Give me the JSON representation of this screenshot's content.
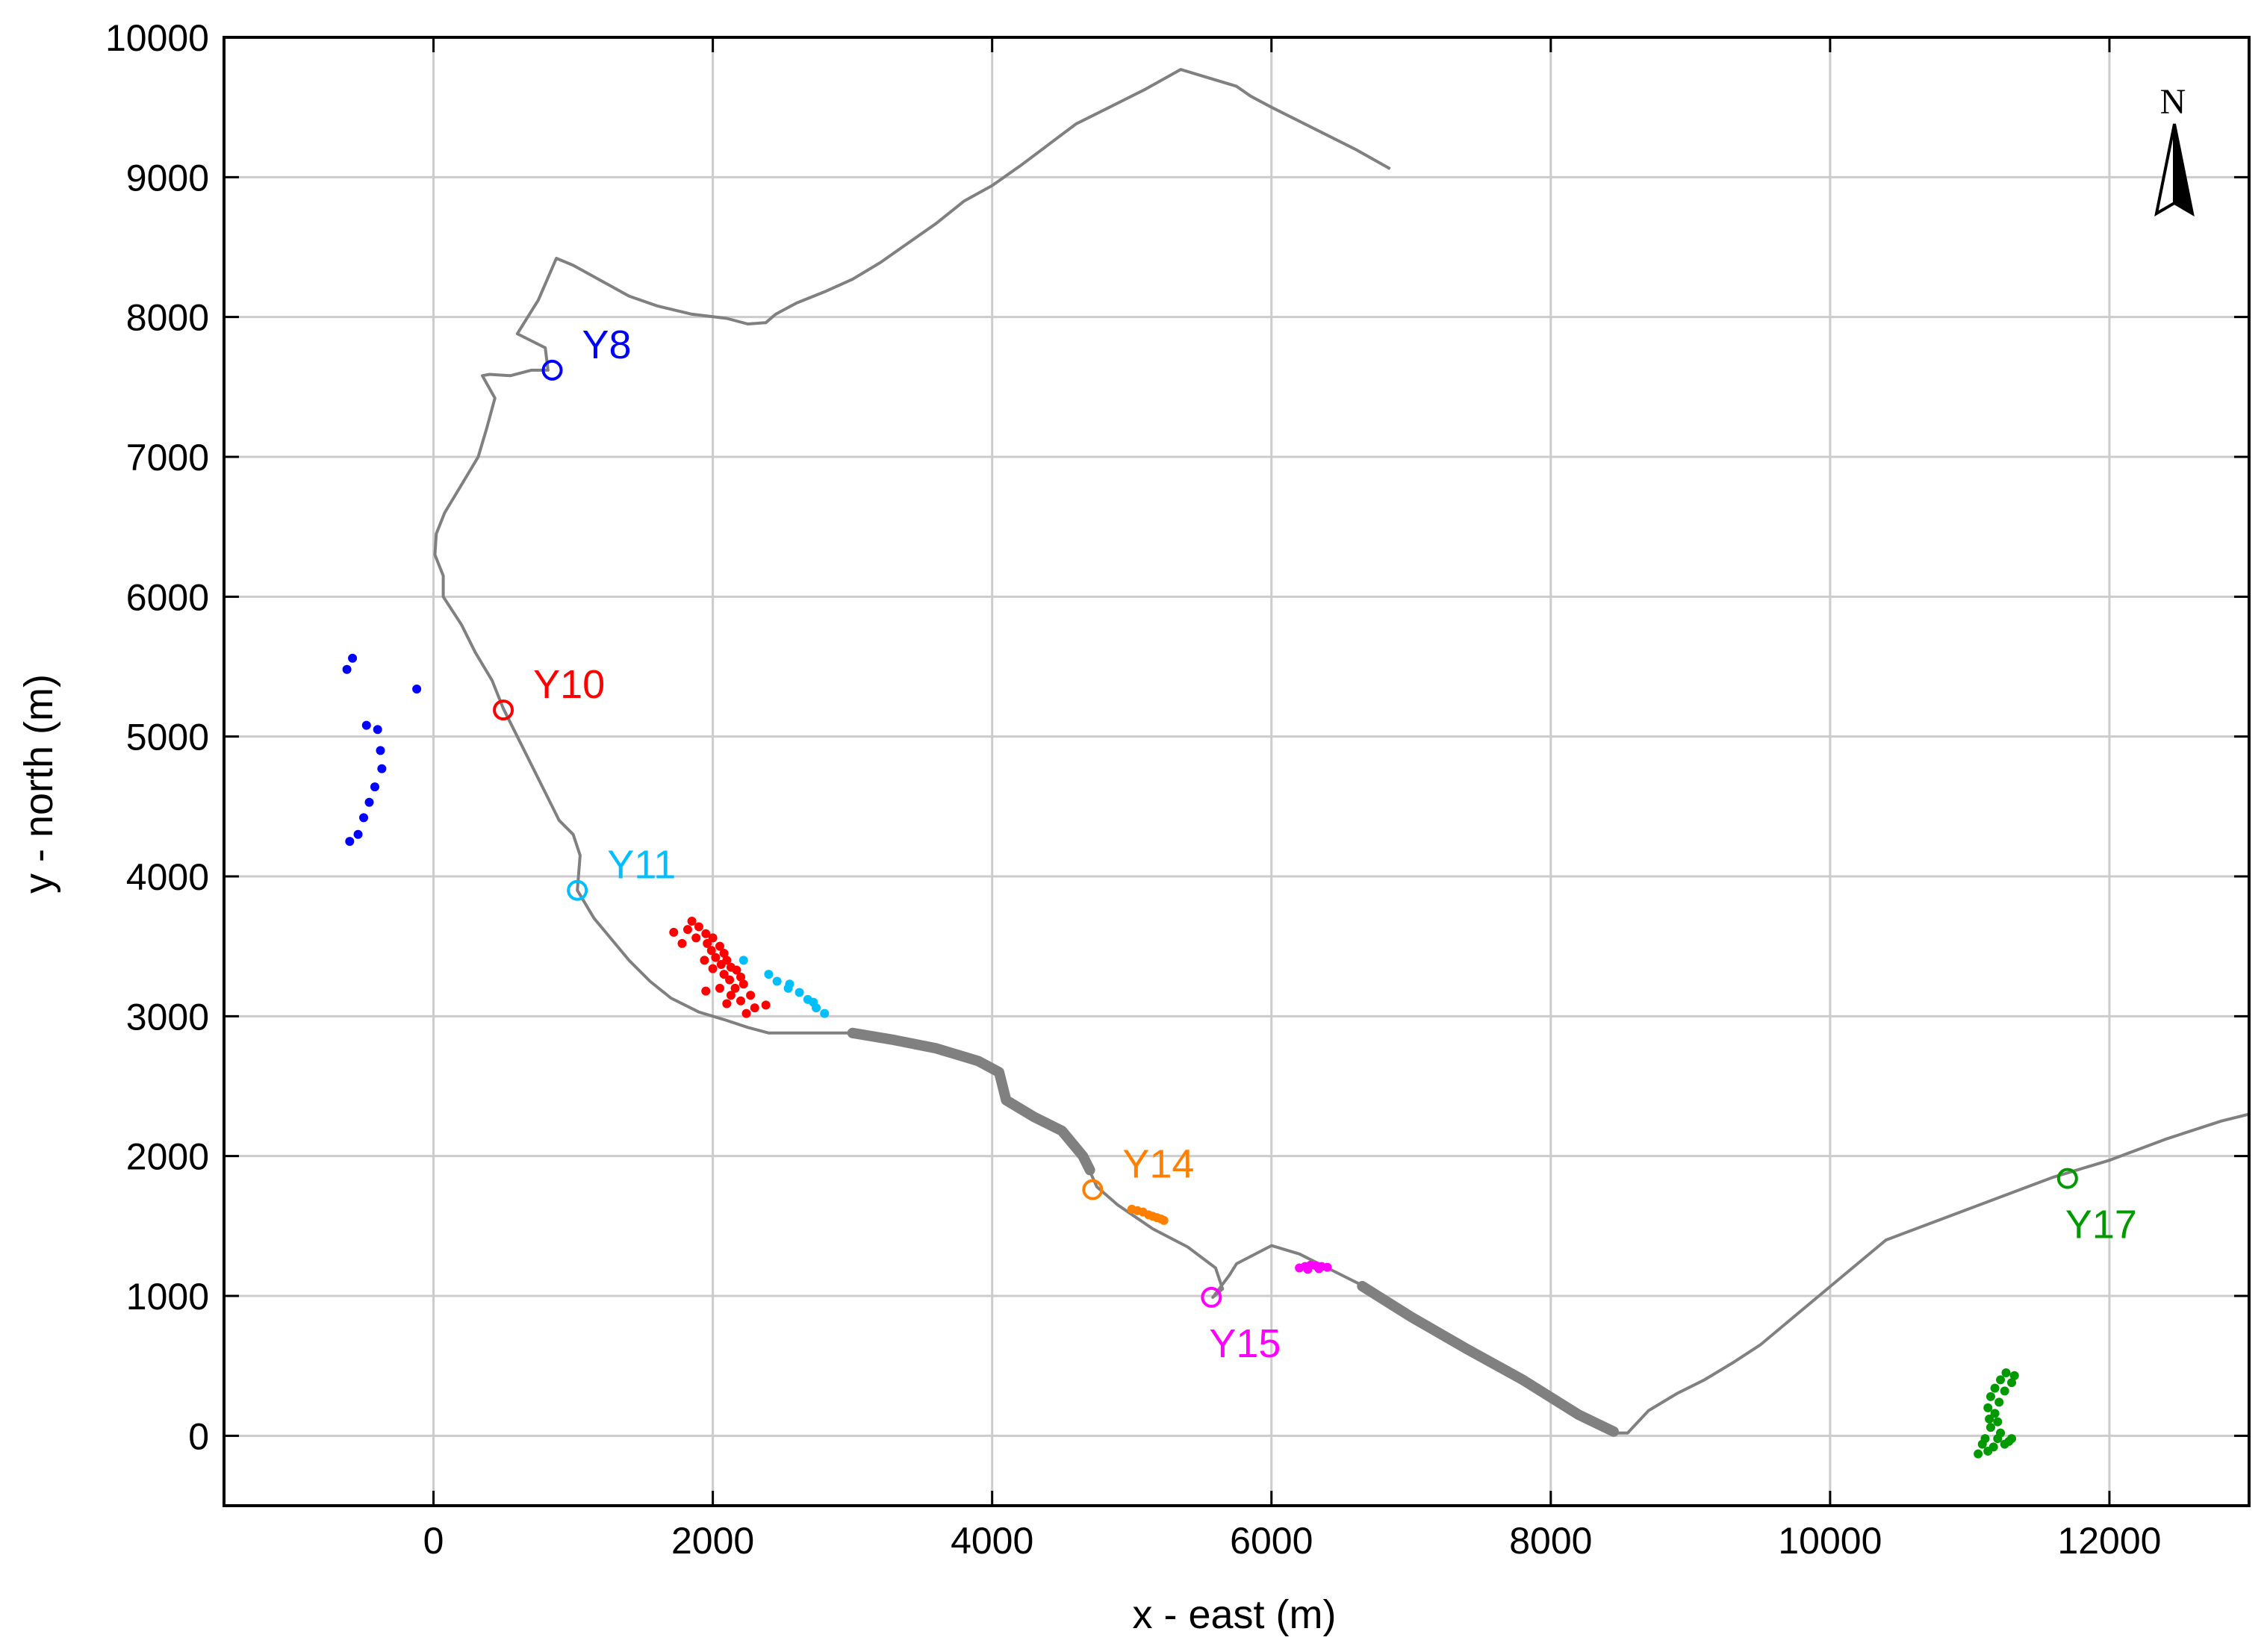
{
  "chart_data": {
    "type": "scatter",
    "title": "",
    "xlabel": "x - east (m)",
    "ylabel": "y - north (m)",
    "xlim": [
      -1500,
      13000
    ],
    "ylim": [
      -500,
      10000
    ],
    "xticks": [
      0,
      2000,
      4000,
      6000,
      8000,
      10000,
      12000
    ],
    "yticks": [
      0,
      1000,
      2000,
      3000,
      4000,
      5000,
      6000,
      7000,
      8000,
      9000,
      10000
    ],
    "grid": true,
    "north_arrow_label": "N",
    "coastline_color": "#808080",
    "coastline": [
      [
        6850,
        9060
      ],
      [
        6600,
        9200
      ],
      [
        6300,
        9350
      ],
      [
        6000,
        9500
      ],
      [
        5850,
        9580
      ],
      [
        5750,
        9650
      ],
      [
        5350,
        9770
      ],
      [
        5100,
        9630
      ],
      [
        4800,
        9480
      ],
      [
        4600,
        9380
      ],
      [
        4400,
        9230
      ],
      [
        4200,
        9080
      ],
      [
        4000,
        8940
      ],
      [
        3800,
        8830
      ],
      [
        3600,
        8670
      ],
      [
        3400,
        8530
      ],
      [
        3200,
        8390
      ],
      [
        3000,
        8270
      ],
      [
        2800,
        8180
      ],
      [
        2600,
        8100
      ],
      [
        2450,
        8020
      ],
      [
        2380,
        7960
      ],
      [
        2250,
        7950
      ],
      [
        2100,
        7990
      ],
      [
        1850,
        8020
      ],
      [
        1600,
        8080
      ],
      [
        1400,
        8150
      ],
      [
        1200,
        8260
      ],
      [
        1000,
        8370
      ],
      [
        880,
        8420
      ],
      [
        750,
        8120
      ],
      [
        600,
        7880
      ],
      [
        800,
        7780
      ],
      [
        820,
        7620
      ],
      [
        700,
        7620
      ],
      [
        550,
        7580
      ],
      [
        400,
        7590
      ],
      [
        350,
        7580
      ],
      [
        440,
        7420
      ],
      [
        380,
        7200
      ],
      [
        320,
        7000
      ],
      [
        200,
        6800
      ],
      [
        80,
        6600
      ],
      [
        20,
        6450
      ],
      [
        10,
        6300
      ],
      [
        70,
        6150
      ],
      [
        70,
        6000
      ],
      [
        200,
        5800
      ],
      [
        300,
        5600
      ],
      [
        420,
        5400
      ],
      [
        500,
        5200
      ],
      [
        600,
        5000
      ],
      [
        700,
        4800
      ],
      [
        800,
        4600
      ],
      [
        900,
        4400
      ],
      [
        1000,
        4300
      ],
      [
        1050,
        4150
      ],
      [
        1030,
        3900
      ],
      [
        1150,
        3700
      ],
      [
        1300,
        3520
      ],
      [
        1400,
        3400
      ],
      [
        1550,
        3250
      ],
      [
        1700,
        3130
      ],
      [
        1900,
        3030
      ],
      [
        2100,
        2970
      ],
      [
        2250,
        2920
      ],
      [
        2400,
        2880
      ],
      [
        2700,
        2880
      ],
      [
        3000,
        2880
      ],
      [
        3300,
        2830
      ],
      [
        3600,
        2770
      ],
      [
        3900,
        2680
      ],
      [
        4050,
        2600
      ],
      [
        4100,
        2400
      ],
      [
        4300,
        2280
      ],
      [
        4500,
        2180
      ],
      [
        4650,
        2000
      ],
      [
        4750,
        1780
      ],
      [
        4900,
        1650
      ],
      [
        5150,
        1480
      ],
      [
        5400,
        1350
      ],
      [
        5600,
        1200
      ],
      [
        5650,
        1050
      ],
      [
        5580,
        990
      ],
      [
        5700,
        1150
      ],
      [
        5750,
        1230
      ],
      [
        6000,
        1360
      ],
      [
        6200,
        1300
      ],
      [
        6400,
        1200
      ],
      [
        6700,
        1050
      ],
      [
        7000,
        850
      ],
      [
        7400,
        620
      ],
      [
        7800,
        400
      ],
      [
        8200,
        150
      ],
      [
        8450,
        20
      ],
      [
        8550,
        20
      ],
      [
        8700,
        180
      ],
      [
        8900,
        300
      ],
      [
        9100,
        400
      ],
      [
        9300,
        520
      ],
      [
        9500,
        650
      ],
      [
        9800,
        900
      ],
      [
        10100,
        1150
      ],
      [
        10400,
        1400
      ],
      [
        10800,
        1550
      ],
      [
        11200,
        1700
      ],
      [
        11600,
        1850
      ],
      [
        12000,
        1970
      ],
      [
        12400,
        2120
      ],
      [
        12800,
        2250
      ],
      [
        13000,
        2300
      ]
    ],
    "coastline_thick_segments": [
      [
        [
          3000,
          2880
        ],
        [
          3300,
          2830
        ],
        [
          3600,
          2770
        ],
        [
          3900,
          2680
        ],
        [
          4050,
          2600
        ],
        [
          4100,
          2400
        ],
        [
          4300,
          2280
        ],
        [
          4500,
          2180
        ],
        [
          4650,
          2000
        ],
        [
          4700,
          1900
        ]
      ],
      [
        [
          6650,
          1070
        ],
        [
          7000,
          850
        ],
        [
          7400,
          620
        ],
        [
          7800,
          400
        ],
        [
          8200,
          150
        ],
        [
          8450,
          30
        ]
      ]
    ],
    "sites": [
      {
        "name": "Y8",
        "color": "#0000ff",
        "x": 850,
        "y": 7620,
        "label_pos": "right"
      },
      {
        "name": "Y10",
        "color": "#ff0000",
        "x": 500,
        "y": 5190,
        "label_pos": "right"
      },
      {
        "name": "Y11",
        "color": "#00bfff",
        "x": 1030,
        "y": 3900,
        "label_pos": "right"
      },
      {
        "name": "Y14",
        "color": "#ff8000",
        "x": 4720,
        "y": 1760,
        "label_pos": "right"
      },
      {
        "name": "Y15",
        "color": "#ff00ff",
        "x": 5570,
        "y": 990,
        "label_pos": "below"
      },
      {
        "name": "Y17",
        "color": "#009900",
        "x": 11700,
        "y": 1840,
        "label_pos": "below"
      }
    ],
    "series": [
      {
        "name": "Y8",
        "color": "#0000ff",
        "points": [
          [
            -580,
            5560
          ],
          [
            -620,
            5480
          ],
          [
            -120,
            5340
          ],
          [
            -480,
            5080
          ],
          [
            -400,
            5050
          ],
          [
            -380,
            4900
          ],
          [
            -370,
            4770
          ],
          [
            -420,
            4640
          ],
          [
            -460,
            4530
          ],
          [
            -500,
            4420
          ],
          [
            -540,
            4300
          ],
          [
            -600,
            4250
          ]
        ]
      },
      {
        "name": "Y10",
        "color": "#ff0000",
        "points": [
          [
            1850,
            3680
          ],
          [
            1900,
            3640
          ],
          [
            1820,
            3620
          ],
          [
            1950,
            3590
          ],
          [
            2000,
            3560
          ],
          [
            1880,
            3560
          ],
          [
            1960,
            3520
          ],
          [
            2050,
            3500
          ],
          [
            1990,
            3470
          ],
          [
            2080,
            3450
          ],
          [
            2020,
            3420
          ],
          [
            2100,
            3400
          ],
          [
            1940,
            3400
          ],
          [
            2060,
            3370
          ],
          [
            2130,
            3350
          ],
          [
            2000,
            3340
          ],
          [
            2170,
            3330
          ],
          [
            2080,
            3300
          ],
          [
            2200,
            3280
          ],
          [
            2120,
            3260
          ],
          [
            2220,
            3230
          ],
          [
            2160,
            3200
          ],
          [
            2050,
            3200
          ],
          [
            1950,
            3180
          ],
          [
            2130,
            3150
          ],
          [
            2270,
            3150
          ],
          [
            2200,
            3110
          ],
          [
            2100,
            3090
          ],
          [
            2380,
            3080
          ],
          [
            2300,
            3060
          ],
          [
            1720,
            3600
          ],
          [
            1780,
            3520
          ],
          [
            2240,
            3020
          ]
        ]
      },
      {
        "name": "Y11",
        "color": "#00bfff",
        "points": [
          [
            2220,
            3400
          ],
          [
            2400,
            3300
          ],
          [
            2460,
            3250
          ],
          [
            2540,
            3200
          ],
          [
            2620,
            3170
          ],
          [
            2680,
            3120
          ],
          [
            2740,
            3060
          ],
          [
            2800,
            3020
          ],
          [
            2550,
            3230
          ],
          [
            2720,
            3100
          ]
        ]
      },
      {
        "name": "Y14",
        "color": "#ff8000",
        "points": [
          [
            5000,
            1620
          ],
          [
            5040,
            1610
          ],
          [
            5080,
            1600
          ],
          [
            5120,
            1580
          ],
          [
            5150,
            1570
          ],
          [
            5180,
            1560
          ],
          [
            5210,
            1550
          ],
          [
            5230,
            1540
          ]
        ]
      },
      {
        "name": "Y15",
        "color": "#ff00ff",
        "points": [
          [
            6200,
            1200
          ],
          [
            6240,
            1210
          ],
          [
            6280,
            1220
          ],
          [
            6320,
            1215
          ],
          [
            6360,
            1210
          ],
          [
            6400,
            1205
          ],
          [
            6260,
            1190
          ],
          [
            6340,
            1195
          ]
        ]
      },
      {
        "name": "Y17",
        "color": "#009900",
        "points": [
          [
            11260,
            450
          ],
          [
            11320,
            430
          ],
          [
            11220,
            400
          ],
          [
            11300,
            380
          ],
          [
            11180,
            340
          ],
          [
            11250,
            320
          ],
          [
            11150,
            280
          ],
          [
            11210,
            240
          ],
          [
            11130,
            200
          ],
          [
            11180,
            160
          ],
          [
            11140,
            120
          ],
          [
            11200,
            100
          ],
          [
            11150,
            60
          ],
          [
            11220,
            20
          ],
          [
            11110,
            -20
          ],
          [
            11200,
            -20
          ],
          [
            11280,
            -40
          ],
          [
            11090,
            -60
          ],
          [
            11170,
            -80
          ],
          [
            11250,
            -60
          ],
          [
            11130,
            -110
          ],
          [
            11060,
            -130
          ],
          [
            11300,
            -20
          ]
        ]
      }
    ]
  }
}
